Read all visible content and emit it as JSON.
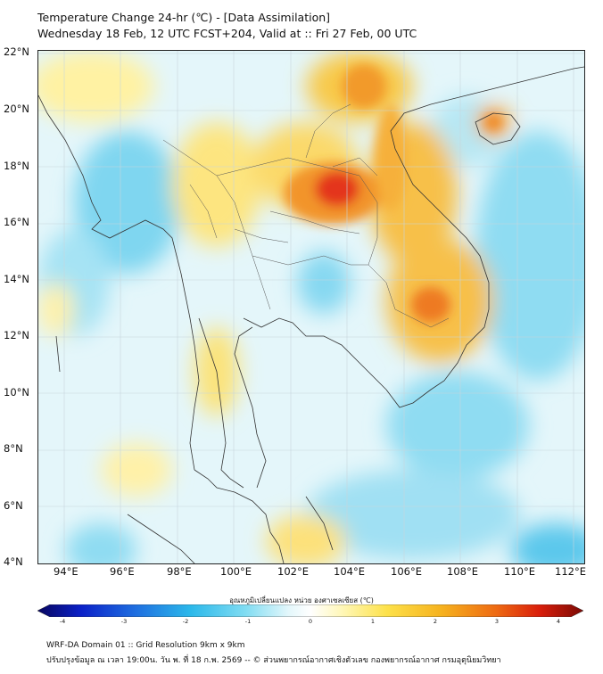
{
  "title": {
    "line1": "Temperature Change 24-hr (℃) - [Data Assimilation]",
    "line2": "Wednesday 18 Feb, 12 UTC FCST+204, Valid at :: Fri 27 Feb, 00 UTC"
  },
  "map": {
    "lat_labels": [
      "22°N",
      "20°N",
      "18°N",
      "16°N",
      "14°N",
      "12°N",
      "10°N",
      "8°N",
      "6°N",
      "4°N"
    ],
    "lon_labels": [
      "94°E",
      "96°E",
      "98°E",
      "100°E",
      "102°E",
      "104°E",
      "106°E",
      "108°E",
      "110°E",
      "112°E"
    ],
    "lat_range": [
      4,
      22
    ],
    "lon_range": [
      93,
      112.3
    ]
  },
  "colorbar": {
    "title": "อุณหภูมิเปลี่ยนแปลง หน่วย องศาเซลเซียส (℃)",
    "ticks": [
      "-4",
      "-3",
      "-2",
      "-1",
      "0",
      "1",
      "2",
      "3",
      "4"
    ],
    "range": [
      -4,
      4
    ],
    "colors": [
      "#08065e",
      "#0b21c8",
      "#1f6fe0",
      "#2bb8ea",
      "#7fdcf2",
      "#e3f7fb",
      "#ffffff",
      "#fff7b5",
      "#fde14a",
      "#f6b21e",
      "#ee6a12",
      "#d91e0b",
      "#7a0a05"
    ]
  },
  "footer": {
    "line1": "WRF-DA Domain 01 :: Grid Resolution 9km x 9km",
    "line2": "ปรับปรุงข้อมูล ณ เวลา 19:00น. วัน พ. ที่ 18 ก.พ. 2569 -- © ส่วนพยากรณ์อากาศเชิงตัวเลข กองพยากรณ์อากาศ กรมอุตุนิยมวิทยา"
  }
}
